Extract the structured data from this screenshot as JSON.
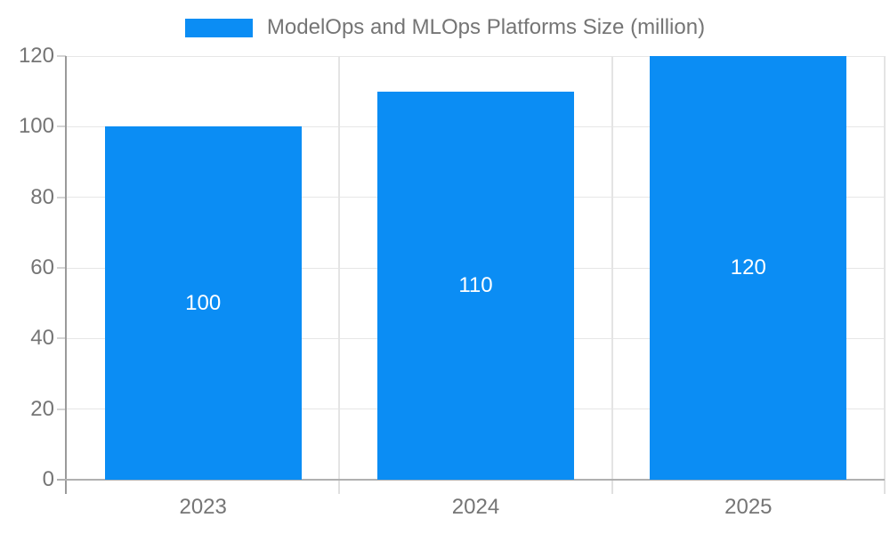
{
  "chart_data": {
    "type": "bar",
    "title": "ModelOps and MLOps Platforms Size (million)",
    "categories": [
      "2023",
      "2024",
      "2025"
    ],
    "values": [
      100,
      110,
      120
    ],
    "series": [
      {
        "name": "ModelOps and MLOps Platforms Size (million)",
        "values": [
          100,
          110,
          120
        ]
      }
    ],
    "xlabel": "",
    "ylabel": "",
    "ylim": [
      0,
      120
    ],
    "yticks": [
      0,
      20,
      40,
      60,
      80,
      100,
      120
    ],
    "grid": true,
    "legend_position": "top-center",
    "bar_color": "#0b8df4",
    "value_label_color": "#ffffff",
    "axis_text_color": "#757575",
    "gridline_color": "#e6e6e6",
    "background_color": "#ffffff"
  }
}
